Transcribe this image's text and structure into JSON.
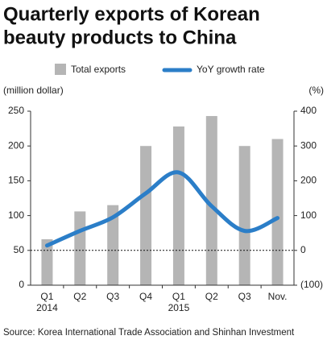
{
  "chart_data": {
    "type": "bar_line",
    "title": [
      "Quarterly exports of Korean",
      "beauty products to China"
    ],
    "categories": [
      "Q1",
      "Q2",
      "Q3",
      "Q4",
      "Q1",
      "Q2",
      "Q3",
      "Nov."
    ],
    "years": [
      "2014",
      null,
      null,
      null,
      "2015",
      null,
      null,
      null
    ],
    "series": [
      {
        "name": "Total exports",
        "type": "bar",
        "color": "#b5b5b5",
        "values": [
          66,
          106,
          115,
          200,
          228,
          243,
          200,
          210
        ]
      },
      {
        "name": "YoY growth rate",
        "type": "line",
        "axis": "y2",
        "color": "#2b7ec8",
        "values": [
          14,
          56,
          95,
          164,
          224,
          127,
          56,
          93
        ]
      }
    ],
    "y_label": "(million dollar)",
    "y2_label": "(%)",
    "ylim": [
      0,
      250
    ],
    "yticks": [
      0,
      50,
      100,
      150,
      200,
      250
    ],
    "y2lim": [
      -100,
      400
    ],
    "y2ticks": [
      {
        "value": -100,
        "label": "(100)"
      },
      0,
      100,
      200,
      300,
      400
    ],
    "reference_line": 50,
    "source": "Source:  Korea International Trade Association and Shinhan Investment"
  }
}
